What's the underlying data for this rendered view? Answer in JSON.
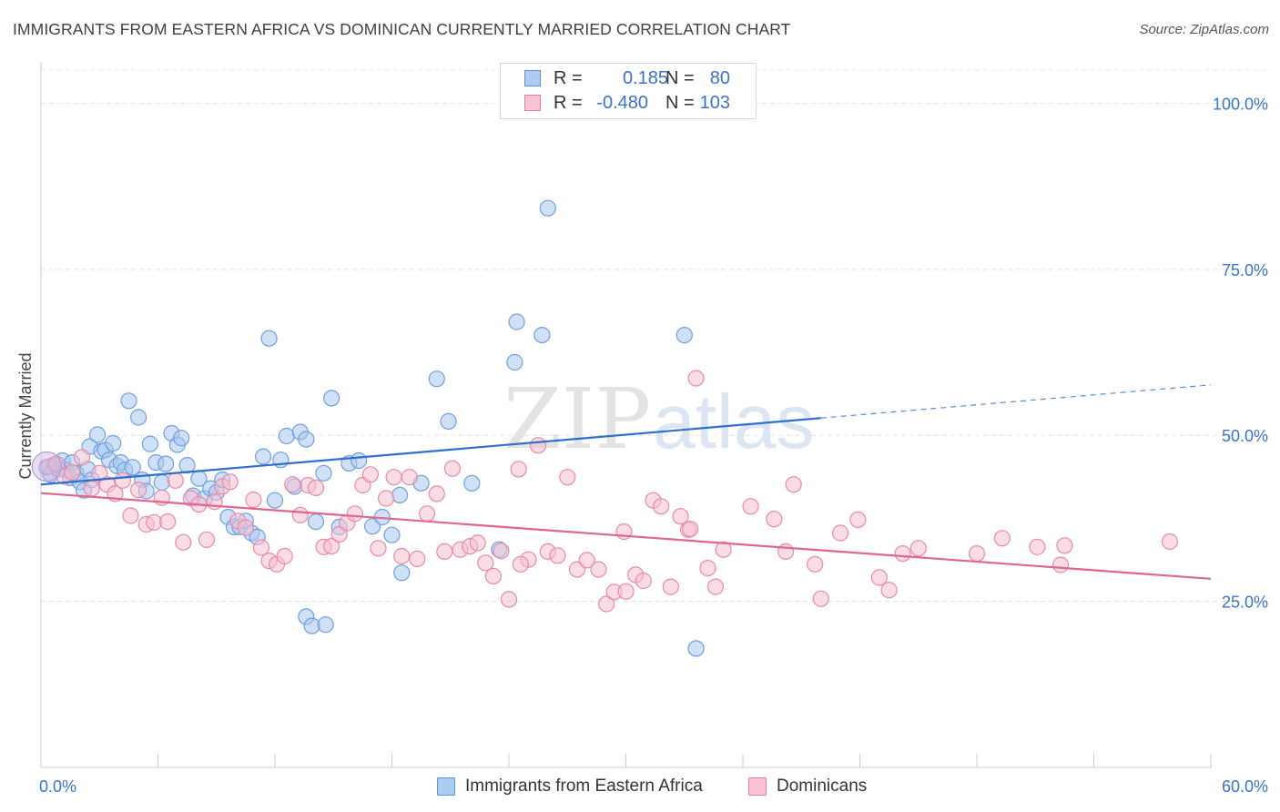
{
  "header": {
    "title": "IMMIGRANTS FROM EASTERN AFRICA VS DOMINICAN CURRENTLY MARRIED CORRELATION CHART",
    "source": "Source: ZipAtlas.com"
  },
  "watermark": {
    "zip": "ZIP",
    "atlas": "atlas"
  },
  "stats_legend": {
    "rows": [
      {
        "r_label": "R =",
        "r_value": "0.185",
        "n_label": "N =",
        "n_value": "80",
        "color": "#aecbf0",
        "border": "#5b8fd6"
      },
      {
        "r_label": "R =",
        "r_value": "-0.480",
        "n_label": "N =",
        "n_value": "103",
        "color": "#f8c3d3",
        "border": "#e27da0"
      }
    ]
  },
  "chart_data": {
    "type": "scatter",
    "title": "IMMIGRANTS FROM EASTERN AFRICA VS DOMINICAN CURRENTLY MARRIED CORRELATION CHART",
    "xlabel": "",
    "ylabel": "Currently Married",
    "xlim": [
      0,
      60
    ],
    "ylim": [
      0,
      105
    ],
    "x_tick_labels": [
      "0.0%",
      "60.0%"
    ],
    "y_ticks": [
      25,
      50,
      75,
      100
    ],
    "y_tick_labels": [
      "25.0%",
      "50.0%",
      "75.0%",
      "100.0%"
    ],
    "grid": true,
    "legend_position": "bottom",
    "series": [
      {
        "name": "Immigrants from Eastern Africa",
        "color": "#6f9fe0",
        "fill": "#a9c8f0",
        "trend": {
          "x0": 0,
          "y0": 42.6,
          "x1": 40,
          "y1": 52.6,
          "dashed_to_x": 60,
          "dashed_to_y": 57.6,
          "color": "#2e6fce"
        },
        "points": [
          [
            0.3,
            45.2
          ],
          [
            0.5,
            44.1
          ],
          [
            0.7,
            45.6
          ],
          [
            0.9,
            44.9
          ],
          [
            1.1,
            46.2
          ],
          [
            1.3,
            44.8
          ],
          [
            1.5,
            43.6
          ],
          [
            1.6,
            45.9
          ],
          [
            1.8,
            44.3
          ],
          [
            2.0,
            43.0
          ],
          [
            2.2,
            41.7
          ],
          [
            2.4,
            44.9
          ],
          [
            2.6,
            43.3
          ],
          [
            2.5,
            48.3
          ],
          [
            2.9,
            50.1
          ],
          [
            3.1,
            47.6
          ],
          [
            3.3,
            47.8
          ],
          [
            3.5,
            46.3
          ],
          [
            3.7,
            48.8
          ],
          [
            3.9,
            45.4
          ],
          [
            4.1,
            45.9
          ],
          [
            4.3,
            44.8
          ],
          [
            4.5,
            55.2
          ],
          [
            4.7,
            45.2
          ],
          [
            5.0,
            52.7
          ],
          [
            5.2,
            43.3
          ],
          [
            5.4,
            41.6
          ],
          [
            5.6,
            48.7
          ],
          [
            5.9,
            45.9
          ],
          [
            6.2,
            42.9
          ],
          [
            6.4,
            45.7
          ],
          [
            6.7,
            50.3
          ],
          [
            7.0,
            48.6
          ],
          [
            7.2,
            49.6
          ],
          [
            7.5,
            45.5
          ],
          [
            7.8,
            40.9
          ],
          [
            8.1,
            43.5
          ],
          [
            8.4,
            40.5
          ],
          [
            8.7,
            42.0
          ],
          [
            9.0,
            41.4
          ],
          [
            9.3,
            43.3
          ],
          [
            9.6,
            37.7
          ],
          [
            9.9,
            36.2
          ],
          [
            10.2,
            36.2
          ],
          [
            10.5,
            37.1
          ],
          [
            10.8,
            35.3
          ],
          [
            11.1,
            34.7
          ],
          [
            11.4,
            46.8
          ],
          [
            11.7,
            64.6
          ],
          [
            12.0,
            40.2
          ],
          [
            12.3,
            46.3
          ],
          [
            12.6,
            49.9
          ],
          [
            13.0,
            42.3
          ],
          [
            13.3,
            50.5
          ],
          [
            13.6,
            49.4
          ],
          [
            14.1,
            37.0
          ],
          [
            14.5,
            44.3
          ],
          [
            14.9,
            55.6
          ],
          [
            15.3,
            36.2
          ],
          [
            15.8,
            45.8
          ],
          [
            16.3,
            46.2
          ],
          [
            17.0,
            36.3
          ],
          [
            17.5,
            37.7
          ],
          [
            18.0,
            35.0
          ],
          [
            18.5,
            29.3
          ],
          [
            13.6,
            22.7
          ],
          [
            13.9,
            21.3
          ],
          [
            14.6,
            21.5
          ],
          [
            18.4,
            41.0
          ],
          [
            19.5,
            42.8
          ],
          [
            20.3,
            58.5
          ],
          [
            20.9,
            52.1
          ],
          [
            22.1,
            42.8
          ],
          [
            23.5,
            32.8
          ],
          [
            24.3,
            61.0
          ],
          [
            24.4,
            67.1
          ],
          [
            25.7,
            65.1
          ],
          [
            26.0,
            84.2
          ],
          [
            33.0,
            65.1
          ],
          [
            33.6,
            17.9
          ]
        ]
      },
      {
        "name": "Dominicans",
        "color": "#e88aa9",
        "fill": "#f6bfd0",
        "trend": {
          "x0": 0,
          "y0": 41.3,
          "x1": 60,
          "y1": 28.4,
          "color": "#e06591"
        },
        "points": [
          [
            0.4,
            45.3
          ],
          [
            0.8,
            45.7
          ],
          [
            1.2,
            43.8
          ],
          [
            1.6,
            44.4
          ],
          [
            2.1,
            46.7
          ],
          [
            2.6,
            42.0
          ],
          [
            3.0,
            44.3
          ],
          [
            3.4,
            42.6
          ],
          [
            3.8,
            41.2
          ],
          [
            4.2,
            43.2
          ],
          [
            4.6,
            37.9
          ],
          [
            5.0,
            41.8
          ],
          [
            5.4,
            36.6
          ],
          [
            5.8,
            36.9
          ],
          [
            6.2,
            40.6
          ],
          [
            6.5,
            37.0
          ],
          [
            6.9,
            43.2
          ],
          [
            7.3,
            33.9
          ],
          [
            7.7,
            40.5
          ],
          [
            8.1,
            39.6
          ],
          [
            8.5,
            34.3
          ],
          [
            8.9,
            40.0
          ],
          [
            9.3,
            42.3
          ],
          [
            9.7,
            43.0
          ],
          [
            10.1,
            37.1
          ],
          [
            10.5,
            36.1
          ],
          [
            10.9,
            40.3
          ],
          [
            11.3,
            33.1
          ],
          [
            11.7,
            31.1
          ],
          [
            12.1,
            30.6
          ],
          [
            12.5,
            31.8
          ],
          [
            12.9,
            42.6
          ],
          [
            13.3,
            38.0
          ],
          [
            13.7,
            42.5
          ],
          [
            14.1,
            42.1
          ],
          [
            14.5,
            33.2
          ],
          [
            14.9,
            33.3
          ],
          [
            15.3,
            35.1
          ],
          [
            15.7,
            36.8
          ],
          [
            16.1,
            38.2
          ],
          [
            16.5,
            42.5
          ],
          [
            16.9,
            44.1
          ],
          [
            17.3,
            33.0
          ],
          [
            17.7,
            40.5
          ],
          [
            18.1,
            43.7
          ],
          [
            18.5,
            31.8
          ],
          [
            18.9,
            43.7
          ],
          [
            19.3,
            31.4
          ],
          [
            19.8,
            38.2
          ],
          [
            20.3,
            41.2
          ],
          [
            20.7,
            32.5
          ],
          [
            21.1,
            45.0
          ],
          [
            21.5,
            32.8
          ],
          [
            22.0,
            33.3
          ],
          [
            22.4,
            33.8
          ],
          [
            22.8,
            30.8
          ],
          [
            23.2,
            28.8
          ],
          [
            23.6,
            32.6
          ],
          [
            24.0,
            25.3
          ],
          [
            24.5,
            44.9
          ],
          [
            25.0,
            31.3
          ],
          [
            25.5,
            48.5
          ],
          [
            26.0,
            32.5
          ],
          [
            26.5,
            31.9
          ],
          [
            27.0,
            43.7
          ],
          [
            27.5,
            29.8
          ],
          [
            28.0,
            31.2
          ],
          [
            28.6,
            29.8
          ],
          [
            29.0,
            24.6
          ],
          [
            29.4,
            26.4
          ],
          [
            29.9,
            35.5
          ],
          [
            30.5,
            29.0
          ],
          [
            30.9,
            28.1
          ],
          [
            31.4,
            40.2
          ],
          [
            31.8,
            39.3
          ],
          [
            32.3,
            27.2
          ],
          [
            32.8,
            37.8
          ],
          [
            33.2,
            35.8
          ],
          [
            33.6,
            58.6
          ],
          [
            34.2,
            30.0
          ],
          [
            34.6,
            27.2
          ],
          [
            35.0,
            32.8
          ],
          [
            36.4,
            39.3
          ],
          [
            37.6,
            37.4
          ],
          [
            38.6,
            42.6
          ],
          [
            39.7,
            30.6
          ],
          [
            40.0,
            25.4
          ],
          [
            41.0,
            35.3
          ],
          [
            41.9,
            37.3
          ],
          [
            43.0,
            28.6
          ],
          [
            43.5,
            26.7
          ],
          [
            44.2,
            32.2
          ],
          [
            45.0,
            33.0
          ],
          [
            48.0,
            32.2
          ],
          [
            49.3,
            34.5
          ],
          [
            51.1,
            33.2
          ],
          [
            52.3,
            30.5
          ],
          [
            52.5,
            33.4
          ],
          [
            57.9,
            34.0
          ],
          [
            33.3,
            35.9
          ],
          [
            24.6,
            30.6
          ],
          [
            30.0,
            26.5
          ],
          [
            38.2,
            32.5
          ]
        ]
      }
    ]
  },
  "bottom_legend": {
    "items": [
      {
        "label": "Immigrants from Eastern Africa"
      },
      {
        "label": "Dominicans"
      }
    ]
  }
}
